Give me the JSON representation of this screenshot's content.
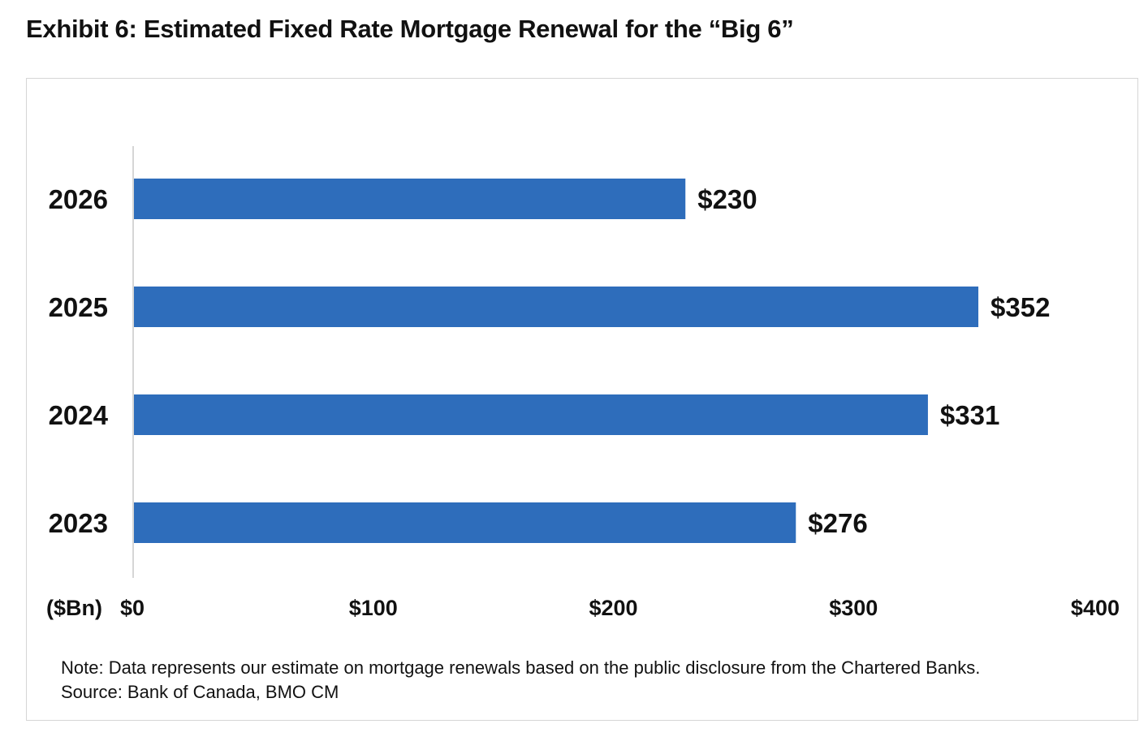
{
  "title": "Exhibit 6:  Estimated Fixed Rate Mortgage Renewal for the “Big 6”",
  "note": "Note: Data represents our estimate on mortgage renewals based on the public disclosure from the Chartered Banks.",
  "source": "Source: Bank of Canada, BMO CM",
  "colors": {
    "bar": "#2e6dbb",
    "axis": "#c8c8c8",
    "frame": "#d6d6d6"
  },
  "chart_data": {
    "type": "bar",
    "orientation": "horizontal",
    "categories": [
      "2026",
      "2025",
      "2024",
      "2023"
    ],
    "values": [
      230,
      352,
      331,
      276
    ],
    "value_labels": [
      "$230",
      "$352",
      "$331",
      "$276"
    ],
    "x_tick_values": [
      0,
      100,
      200,
      300,
      400
    ],
    "x_tick_labels": [
      "$0",
      "$100",
      "$200",
      "$300",
      "$400"
    ],
    "unit_label": "($Bn)",
    "xlim": [
      0,
      400
    ],
    "grid": false,
    "legend": "none"
  }
}
